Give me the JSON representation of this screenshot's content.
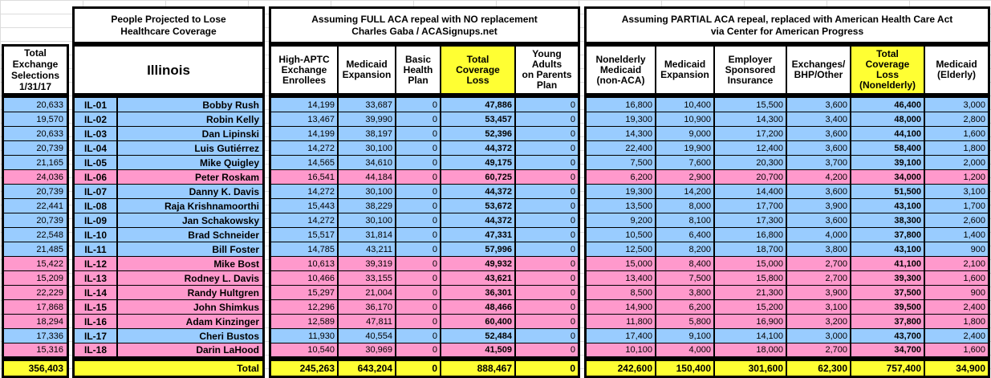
{
  "colors": {
    "blue": "#99CCFF",
    "pink": "#FF99CC",
    "yellow": "#FFFF33",
    "border": "#000000",
    "gridline": "#DCDCDC"
  },
  "left_header": {
    "text": "Total\nExchange\nSelections\n1/31/17"
  },
  "group_people": {
    "title": "People Projected to Lose\nHealthcare Coverage",
    "state": "Illinois"
  },
  "group_full": {
    "title": "Assuming FULL ACA repeal with NO replacement\nCharles Gaba / ACASignups.net",
    "columns": [
      "High-APTC\nExchange\nEnrollees",
      "Medicaid\nExpansion",
      "Basic\nHealth\nPlan",
      "Total\nCoverage\nLoss",
      "Young\nAdults\non Parents\nPlan"
    ]
  },
  "group_ahca": {
    "title": "Assuming PARTIAL ACA repeal, replaced with American Health Care Act\nvia Center for American Progress",
    "columns": [
      "Nonelderly\nMedicaid\n(non-ACA)",
      "Medicaid\nExpansion",
      "Employer\nSponsored\nInsurance",
      "Exchanges/\nBHP/Other",
      "Total\nCoverage\nLoss\n(Nonelderly)",
      "Medicaid\n(Elderly)"
    ]
  },
  "rows": [
    {
      "row_color": "blue",
      "selections": "20,633",
      "district": "IL-01",
      "rep": "Bobby Rush",
      "full": [
        "14,199",
        "33,687",
        "0",
        "47,886",
        "0"
      ],
      "ahca": [
        "16,800",
        "10,400",
        "15,500",
        "3,600",
        "46,400",
        "3,000"
      ]
    },
    {
      "row_color": "blue",
      "selections": "19,570",
      "district": "IL-02",
      "rep": "Robin Kelly",
      "full": [
        "13,467",
        "39,990",
        "0",
        "53,457",
        "0"
      ],
      "ahca": [
        "19,300",
        "10,900",
        "14,300",
        "3,400",
        "48,000",
        "2,800"
      ]
    },
    {
      "row_color": "blue",
      "selections": "20,633",
      "district": "IL-03",
      "rep": "Dan Lipinski",
      "full": [
        "14,199",
        "38,197",
        "0",
        "52,396",
        "0"
      ],
      "ahca": [
        "14,300",
        "9,000",
        "17,200",
        "3,600",
        "44,100",
        "1,600"
      ]
    },
    {
      "row_color": "blue",
      "selections": "20,739",
      "district": "IL-04",
      "rep": "Luis Gutiérrez",
      "full": [
        "14,272",
        "30,100",
        "0",
        "44,372",
        "0"
      ],
      "ahca": [
        "22,400",
        "19,900",
        "12,400",
        "3,600",
        "58,400",
        "1,800"
      ]
    },
    {
      "row_color": "blue",
      "selections": "21,165",
      "district": "IL-05",
      "rep": "Mike Quigley",
      "full": [
        "14,565",
        "34,610",
        "0",
        "49,175",
        "0"
      ],
      "ahca": [
        "7,500",
        "7,600",
        "20,300",
        "3,700",
        "39,100",
        "2,000"
      ]
    },
    {
      "row_color": "pink",
      "selections": "24,036",
      "district": "IL-06",
      "rep": "Peter Roskam",
      "full": [
        "16,541",
        "44,184",
        "0",
        "60,725",
        "0"
      ],
      "ahca": [
        "6,200",
        "2,900",
        "20,700",
        "4,200",
        "34,000",
        "1,200"
      ]
    },
    {
      "row_color": "blue",
      "selections": "20,739",
      "district": "IL-07",
      "rep": "Danny K. Davis",
      "full": [
        "14,272",
        "30,100",
        "0",
        "44,372",
        "0"
      ],
      "ahca": [
        "19,300",
        "14,200",
        "14,400",
        "3,600",
        "51,500",
        "3,100"
      ]
    },
    {
      "row_color": "blue",
      "selections": "22,441",
      "district": "IL-08",
      "rep": "Raja Krishnamoorthi",
      "full": [
        "15,443",
        "38,229",
        "0",
        "53,672",
        "0"
      ],
      "ahca": [
        "13,500",
        "8,000",
        "17,700",
        "3,900",
        "43,100",
        "1,700"
      ]
    },
    {
      "row_color": "blue",
      "selections": "20,739",
      "district": "IL-09",
      "rep": "Jan Schakowsky",
      "full": [
        "14,272",
        "30,100",
        "0",
        "44,372",
        "0"
      ],
      "ahca": [
        "9,200",
        "8,100",
        "17,300",
        "3,600",
        "38,300",
        "2,600"
      ]
    },
    {
      "row_color": "blue",
      "selections": "22,548",
      "district": "IL-10",
      "rep": "Brad Schneider",
      "full": [
        "15,517",
        "31,814",
        "0",
        "47,331",
        "0"
      ],
      "ahca": [
        "10,500",
        "6,400",
        "16,800",
        "4,000",
        "37,800",
        "1,400"
      ]
    },
    {
      "row_color": "blue",
      "selections": "21,485",
      "district": "IL-11",
      "rep": "Bill Foster",
      "full": [
        "14,785",
        "43,211",
        "0",
        "57,996",
        "0"
      ],
      "ahca": [
        "12,500",
        "8,200",
        "18,700",
        "3,800",
        "43,100",
        "900"
      ]
    },
    {
      "row_color": "pink",
      "selections": "15,422",
      "district": "IL-12",
      "rep": "Mike Bost",
      "full": [
        "10,613",
        "39,319",
        "0",
        "49,932",
        "0"
      ],
      "ahca": [
        "15,000",
        "8,400",
        "15,000",
        "2,700",
        "41,100",
        "2,100"
      ]
    },
    {
      "row_color": "pink",
      "selections": "15,209",
      "district": "IL-13",
      "rep": "Rodney L. Davis",
      "full": [
        "10,466",
        "33,155",
        "0",
        "43,621",
        "0"
      ],
      "ahca": [
        "13,400",
        "7,500",
        "15,800",
        "2,700",
        "39,300",
        "1,600"
      ]
    },
    {
      "row_color": "pink",
      "selections": "22,229",
      "district": "IL-14",
      "rep": "Randy Hultgren",
      "full": [
        "15,297",
        "21,004",
        "0",
        "36,301",
        "0"
      ],
      "ahca": [
        "8,500",
        "3,800",
        "21,300",
        "3,900",
        "37,500",
        "900"
      ]
    },
    {
      "row_color": "pink",
      "selections": "17,868",
      "district": "IL-15",
      "rep": "John Shimkus",
      "full": [
        "12,296",
        "36,170",
        "0",
        "48,466",
        "0"
      ],
      "ahca": [
        "14,900",
        "6,200",
        "15,200",
        "3,100",
        "39,500",
        "2,400"
      ]
    },
    {
      "row_color": "pink",
      "selections": "18,294",
      "district": "IL-16",
      "rep": "Adam Kinzinger",
      "full": [
        "12,589",
        "47,811",
        "0",
        "60,400",
        "0"
      ],
      "ahca": [
        "11,800",
        "5,800",
        "16,900",
        "3,200",
        "37,800",
        "1,800"
      ]
    },
    {
      "row_color": "blue",
      "selections": "17,336",
      "district": "IL-17",
      "rep": "Cheri Bustos",
      "full": [
        "11,930",
        "40,554",
        "0",
        "52,484",
        "0"
      ],
      "ahca": [
        "17,400",
        "9,100",
        "14,100",
        "3,000",
        "43,700",
        "2,400"
      ]
    },
    {
      "row_color": "pink",
      "selections": "15,316",
      "district": "IL-18",
      "rep": "Darin LaHood",
      "full": [
        "10,540",
        "30,969",
        "0",
        "41,509",
        "0"
      ],
      "ahca": [
        "10,100",
        "4,000",
        "18,000",
        "2,700",
        "34,700",
        "1,600"
      ]
    }
  ],
  "total": {
    "selections": "356,403",
    "label": "Total",
    "full": [
      "245,263",
      "643,204",
      "0",
      "888,467",
      "0"
    ],
    "ahca": [
      "242,600",
      "150,400",
      "301,600",
      "62,300",
      "757,400",
      "34,900"
    ]
  }
}
